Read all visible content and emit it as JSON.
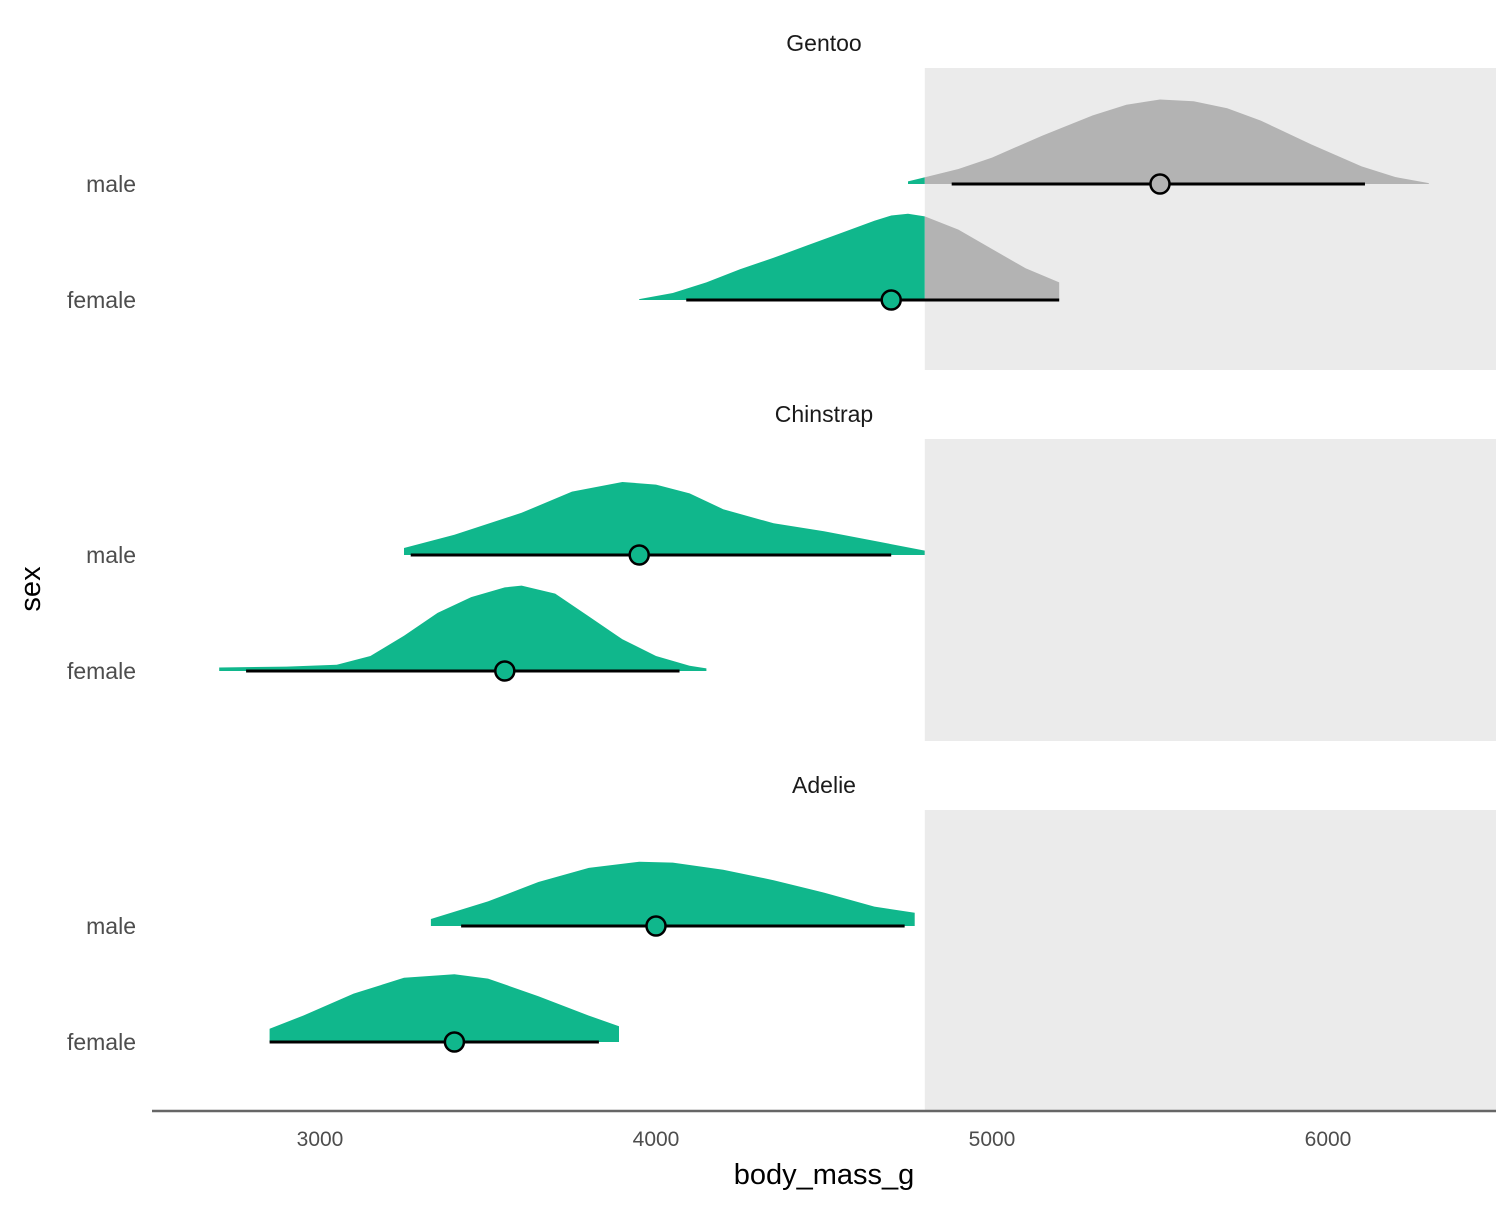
{
  "chart_data": {
    "type": "area",
    "subtype": "halfeye-density-with-pointinterval",
    "xlabel": "body_mass_g",
    "ylabel": "sex",
    "xlim": [
      2500,
      6500
    ],
    "xticks": [
      3000,
      4000,
      5000,
      6000
    ],
    "shade_from": 4800,
    "colors": {
      "below_threshold": "#10b78c",
      "above_threshold": "#b3b3b3",
      "shaded_band": "#ebebeb",
      "interval": "#000000",
      "axis_line": "#666666"
    },
    "facets": [
      {
        "title": "Gentoo",
        "rows": [
          {
            "label": "male",
            "point": 5500,
            "interval": [
              4880,
              6110
            ],
            "density": [
              [
                4750,
                0.03
              ],
              [
                4900,
                0.17
              ],
              [
                5000,
                0.3
              ],
              [
                5150,
                0.55
              ],
              [
                5300,
                0.78
              ],
              [
                5400,
                0.9
              ],
              [
                5500,
                0.96
              ],
              [
                5600,
                0.94
              ],
              [
                5700,
                0.86
              ],
              [
                5800,
                0.72
              ],
              [
                5950,
                0.45
              ],
              [
                6100,
                0.2
              ],
              [
                6200,
                0.08
              ],
              [
                6300,
                0.01
              ]
            ]
          },
          {
            "label": "female",
            "point": 4700,
            "interval": [
              4090,
              5200
            ],
            "density": [
              [
                3950,
                0.01
              ],
              [
                4050,
                0.08
              ],
              [
                4150,
                0.2
              ],
              [
                4250,
                0.35
              ],
              [
                4350,
                0.48
              ],
              [
                4450,
                0.62
              ],
              [
                4550,
                0.76
              ],
              [
                4650,
                0.9
              ],
              [
                4700,
                0.96
              ],
              [
                4750,
                0.98
              ],
              [
                4800,
                0.95
              ],
              [
                4900,
                0.8
              ],
              [
                5000,
                0.58
              ],
              [
                5100,
                0.36
              ],
              [
                5200,
                0.2
              ]
            ]
          }
        ]
      },
      {
        "title": "Chinstrap",
        "rows": [
          {
            "label": "male",
            "point": 3950,
            "interval": [
              3270,
              4700
            ],
            "density": [
              [
                3250,
                0.08
              ],
              [
                3400,
                0.23
              ],
              [
                3600,
                0.48
              ],
              [
                3750,
                0.72
              ],
              [
                3900,
                0.83
              ],
              [
                4000,
                0.8
              ],
              [
                4100,
                0.7
              ],
              [
                4200,
                0.52
              ],
              [
                4350,
                0.36
              ],
              [
                4500,
                0.27
              ],
              [
                4650,
                0.16
              ],
              [
                4800,
                0.05
              ]
            ]
          },
          {
            "label": "female",
            "point": 3550,
            "interval": [
              2780,
              4070
            ],
            "density": [
              [
                2700,
                0.04
              ],
              [
                2900,
                0.05
              ],
              [
                3050,
                0.07
              ],
              [
                3150,
                0.17
              ],
              [
                3250,
                0.4
              ],
              [
                3350,
                0.66
              ],
              [
                3450,
                0.84
              ],
              [
                3550,
                0.95
              ],
              [
                3600,
                0.97
              ],
              [
                3700,
                0.88
              ],
              [
                3800,
                0.62
              ],
              [
                3900,
                0.36
              ],
              [
                4000,
                0.17
              ],
              [
                4100,
                0.06
              ],
              [
                4150,
                0.03
              ]
            ]
          }
        ]
      },
      {
        "title": "Adelie",
        "rows": [
          {
            "label": "male",
            "point": 4000,
            "interval": [
              3420,
              4740
            ],
            "density": [
              [
                3330,
                0.08
              ],
              [
                3500,
                0.28
              ],
              [
                3650,
                0.5
              ],
              [
                3800,
                0.66
              ],
              [
                3950,
                0.73
              ],
              [
                4050,
                0.72
              ],
              [
                4200,
                0.64
              ],
              [
                4350,
                0.52
              ],
              [
                4500,
                0.38
              ],
              [
                4650,
                0.22
              ],
              [
                4770,
                0.15
              ]
            ]
          },
          {
            "label": "female",
            "point": 3400,
            "interval": [
              2850,
              3830
            ],
            "density": [
              [
                2850,
                0.15
              ],
              [
                2950,
                0.3
              ],
              [
                3100,
                0.55
              ],
              [
                3250,
                0.73
              ],
              [
                3400,
                0.77
              ],
              [
                3500,
                0.72
              ],
              [
                3650,
                0.52
              ],
              [
                3800,
                0.3
              ],
              [
                3890,
                0.18
              ]
            ]
          }
        ]
      }
    ]
  }
}
